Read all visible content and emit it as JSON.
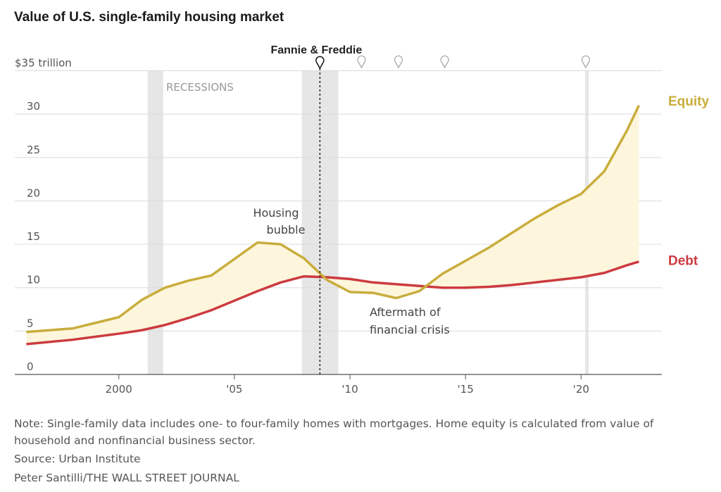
{
  "title": "Value of U.S. single-family housing market",
  "note": "Note: Single-family data includes one- to four-family homes with mortgages. Home equity is calculated from value of household and nonfinancial business sector.",
  "source": "Source: Urban Institute",
  "credit": "Peter Santilli/THE WALL STREET JOURNAL",
  "colors": {
    "equity": "#c9ad3c",
    "debt": "#cc3b3f",
    "fill": "#fdf6dc",
    "recession": "#e6e6e6"
  },
  "chart_data": {
    "type": "area",
    "title": "Value of U.S. single-family housing market",
    "y_unit_label": "$35 trillion",
    "ylim": [
      0,
      35
    ],
    "xlim": [
      1995.5,
      2023
    ],
    "y_ticks": [
      0,
      5,
      10,
      15,
      20,
      25,
      30
    ],
    "x_ticks": [
      {
        "value": 2000,
        "label": "2000"
      },
      {
        "value": 2005,
        "label": "'05"
      },
      {
        "value": 2010,
        "label": "'10"
      },
      {
        "value": 2015,
        "label": "'15"
      },
      {
        "value": 2020,
        "label": "'20"
      }
    ],
    "grid": true,
    "series": [
      {
        "name": "Equity",
        "x": [
          1996,
          1998,
          2000,
          2001,
          2002,
          2003,
          2004,
          2005,
          2006,
          2007,
          2008,
          2009,
          2010,
          2011,
          2012,
          2013,
          2014,
          2015,
          2016,
          2017,
          2018,
          2019,
          2020,
          2021,
          2022,
          2022.5
        ],
        "values": [
          4.9,
          5.3,
          6.6,
          8.6,
          10.0,
          10.8,
          11.4,
          13.3,
          15.2,
          15.0,
          13.4,
          10.9,
          9.5,
          9.4,
          8.8,
          9.6,
          11.6,
          13.1,
          14.6,
          16.3,
          18.0,
          19.5,
          20.8,
          23.4,
          28.2,
          31.0
        ]
      },
      {
        "name": "Debt",
        "x": [
          1996,
          1998,
          2000,
          2001,
          2002,
          2003,
          2004,
          2005,
          2006,
          2007,
          2008,
          2009,
          2010,
          2011,
          2012,
          2013,
          2014,
          2015,
          2016,
          2017,
          2018,
          2019,
          2020,
          2021,
          2022,
          2022.5
        ],
        "values": [
          3.5,
          4.0,
          4.7,
          5.1,
          5.7,
          6.5,
          7.4,
          8.5,
          9.6,
          10.6,
          11.3,
          11.2,
          11.0,
          10.6,
          10.4,
          10.2,
          10.0,
          10.0,
          10.1,
          10.3,
          10.6,
          10.9,
          11.2,
          11.7,
          12.6,
          13.0
        ]
      }
    ],
    "recessions": [
      [
        2001.25,
        2001.92
      ],
      [
        2007.92,
        2009.5
      ],
      [
        2020.17,
        2020.33
      ]
    ],
    "event_marker": {
      "label": "Fannie & Freddie",
      "x": 2008.7
    },
    "pin_markers": [
      2010.5,
      2012.1,
      2014.1,
      2020.2
    ],
    "annotations": [
      {
        "text": "RECESSIONS"
      },
      {
        "text": "Housing"
      },
      {
        "text": "bubble"
      },
      {
        "text": "Aftermath of"
      },
      {
        "text": "financial crisis"
      }
    ]
  }
}
